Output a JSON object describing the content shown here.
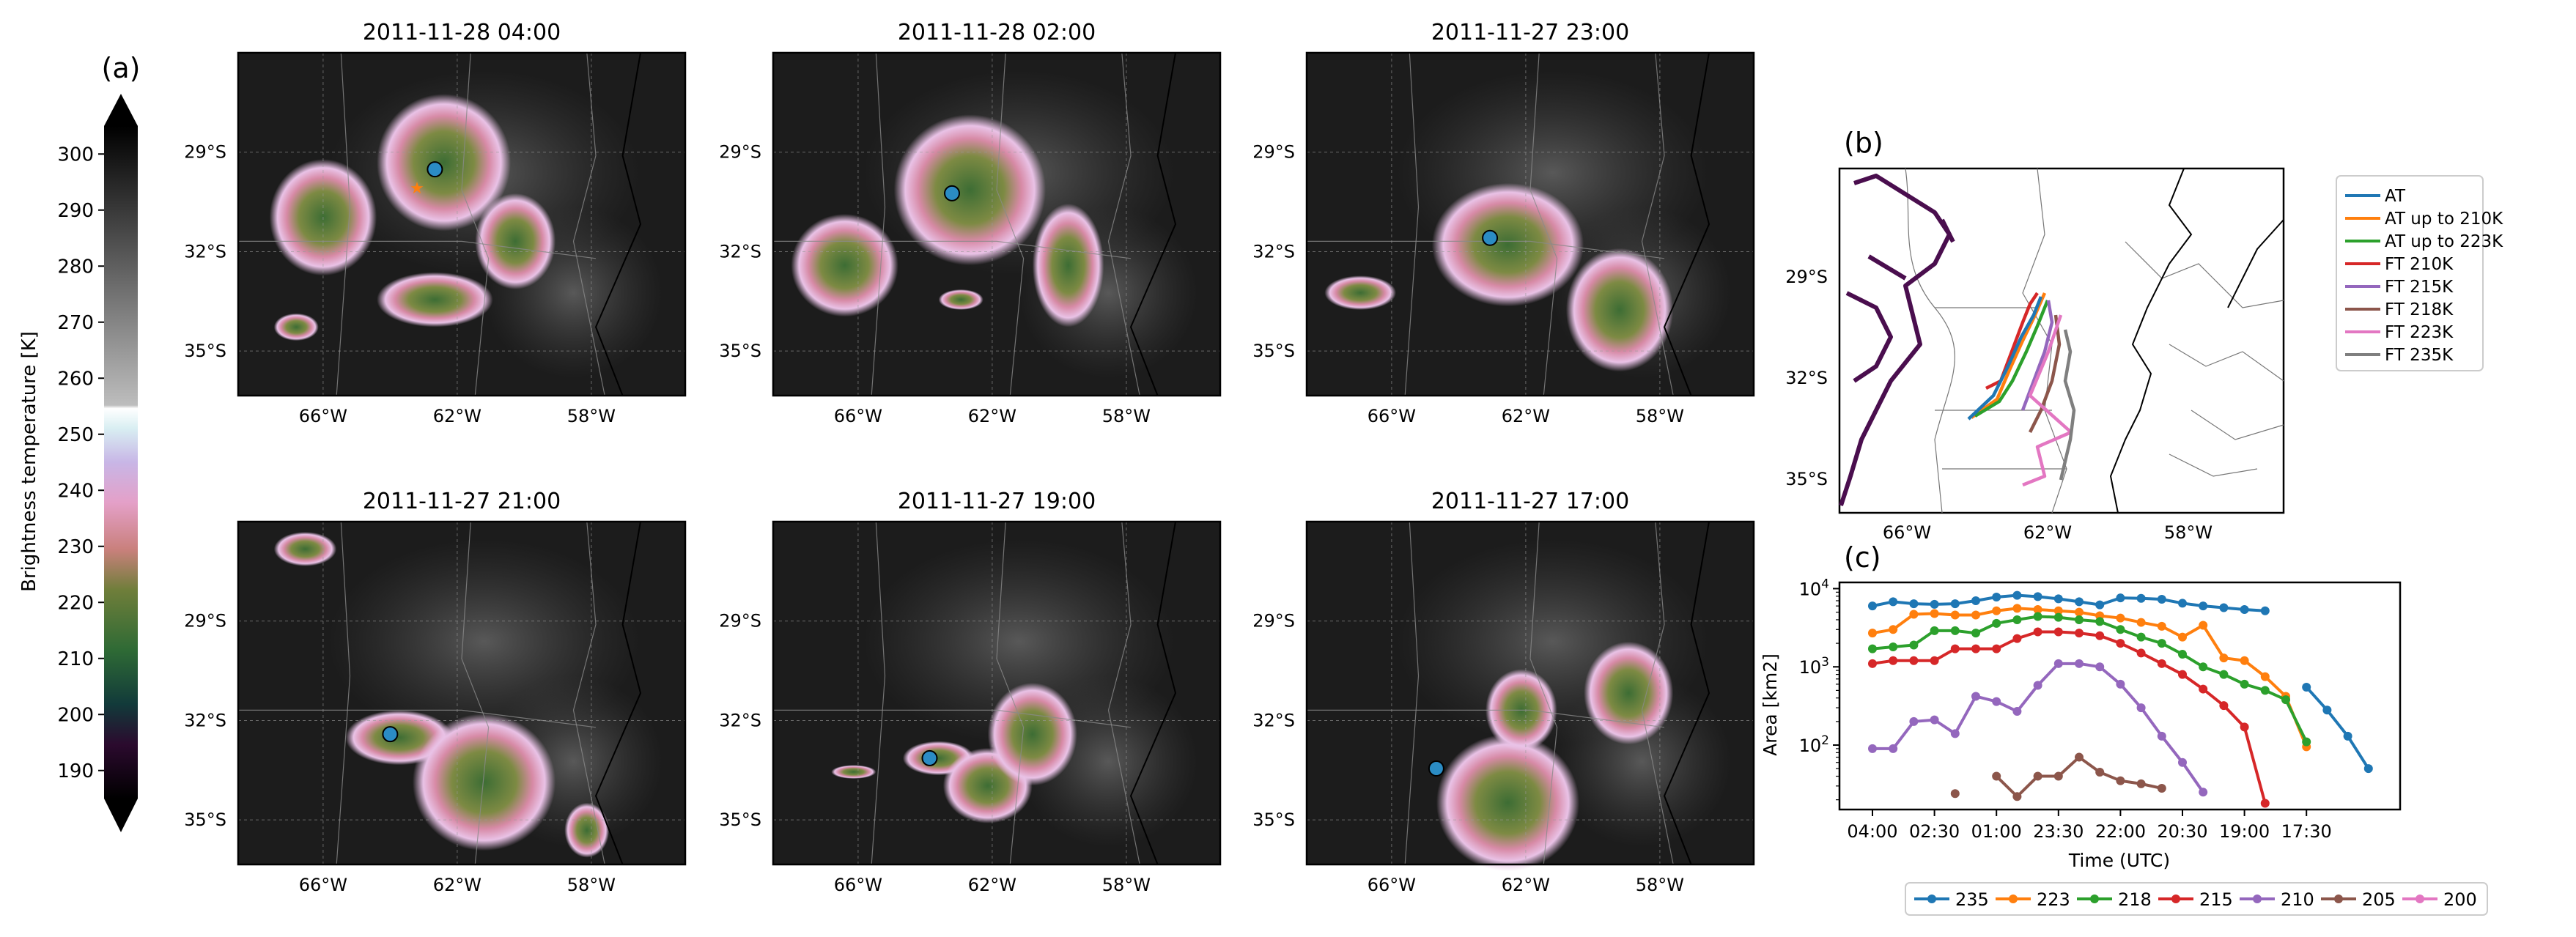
{
  "colorbar": {
    "panel_label": "(a)",
    "label": "Brightness temperature [K]",
    "ticks": [
      "190",
      "200",
      "210",
      "220",
      "230",
      "240",
      "250",
      "260",
      "270",
      "280",
      "290",
      "300"
    ],
    "range": [
      185,
      305
    ]
  },
  "maps": {
    "lat_ticks": [
      "29°S",
      "32°S",
      "35°S"
    ],
    "lon_ticks": [
      "66°W",
      "62°W",
      "58°W"
    ],
    "panels": [
      {
        "title": "2011-11-28 04:00"
      },
      {
        "title": "2011-11-28 02:00"
      },
      {
        "title": "2011-11-27 23:00"
      },
      {
        "title": "2011-11-27 21:00"
      },
      {
        "title": "2011-11-27 19:00"
      },
      {
        "title": "2011-11-27 17:00"
      }
    ]
  },
  "track_map": {
    "panel_label": "(b)",
    "lat_ticks": [
      "29°S",
      "32°S",
      "35°S"
    ],
    "lon_ticks": [
      "66°W",
      "62°W",
      "58°W"
    ],
    "legend": [
      {
        "label": "AT",
        "color": "#1f77b4"
      },
      {
        "label": "AT up to 210K",
        "color": "#ff7f0e"
      },
      {
        "label": "AT up to 223K",
        "color": "#2ca02c"
      },
      {
        "label": "FT 210K",
        "color": "#d62728"
      },
      {
        "label": "FT 215K",
        "color": "#9467bd"
      },
      {
        "label": "FT 218K",
        "color": "#8c564b"
      },
      {
        "label": "FT 223K",
        "color": "#e377c2"
      },
      {
        "label": "FT 235K",
        "color": "#7f7f7f"
      }
    ]
  },
  "chart_data": {
    "panel_label": "(c)",
    "type": "line",
    "xlabel": "Time (UTC)",
    "ylabel": "Area [km2]",
    "yscale": "log",
    "ylim": [
      15,
      12000
    ],
    "x_tick_labels": [
      "04:00",
      "02:30",
      "01:00",
      "23:30",
      "22:00",
      "20:30",
      "19:00",
      "17:30"
    ],
    "x_hours_before_start": [
      0,
      0.5,
      1,
      1.5,
      2,
      2.5,
      3,
      3.5,
      4,
      4.5,
      5,
      5.5,
      6,
      6.5,
      7,
      7.5,
      8,
      8.5,
      9,
      9.5,
      10,
      10.5,
      11,
      11.5,
      12
    ],
    "y_tick_labels": [
      "10^2",
      "10^3",
      "10^4"
    ],
    "series": [
      {
        "name": "235",
        "color": "#1f77b4",
        "values": [
          6000,
          6800,
          6400,
          6300,
          6400,
          7000,
          7800,
          8200,
          7900,
          7400,
          6800,
          6200,
          7600,
          7500,
          7300,
          6500,
          6000,
          5700,
          5400,
          5200,
          null,
          550,
          280,
          130,
          50
        ]
      },
      {
        "name": "223",
        "color": "#ff7f0e",
        "values": [
          2700,
          3000,
          4700,
          4800,
          4600,
          4600,
          5200,
          5600,
          5400,
          5200,
          5000,
          4500,
          4200,
          3700,
          3300,
          2400,
          3400,
          1300,
          1200,
          750,
          420,
          95,
          null,
          null,
          null
        ]
      },
      {
        "name": "218",
        "color": "#2ca02c",
        "values": [
          1700,
          1800,
          1900,
          2900,
          2900,
          2700,
          3600,
          4000,
          4400,
          4300,
          4000,
          3800,
          3000,
          2400,
          2000,
          1450,
          1000,
          800,
          600,
          500,
          380,
          110,
          null,
          null,
          null
        ]
      },
      {
        "name": "215",
        "color": "#d62728",
        "values": [
          1100,
          1200,
          1200,
          1200,
          1700,
          1700,
          1700,
          2300,
          2800,
          2800,
          2700,
          2500,
          2000,
          1500,
          1100,
          800,
          520,
          320,
          170,
          18,
          null,
          null,
          null,
          null,
          null
        ]
      },
      {
        "name": "210",
        "color": "#9467bd",
        "values": [
          90,
          90,
          200,
          210,
          140,
          420,
          360,
          270,
          580,
          1100,
          1100,
          1000,
          600,
          300,
          130,
          60,
          25,
          null,
          null,
          null,
          null,
          null,
          null,
          null,
          null
        ]
      },
      {
        "name": "205",
        "color": "#8c564b",
        "values": [
          null,
          null,
          null,
          null,
          24,
          null,
          40,
          22,
          40,
          40,
          70,
          45,
          35,
          32,
          28,
          null,
          null,
          null,
          null,
          null,
          null,
          null,
          null,
          null,
          null
        ]
      },
      {
        "name": "200",
        "color": "#e377c2",
        "values": [
          null,
          null,
          null,
          null,
          null,
          null,
          null,
          null,
          null,
          null,
          null,
          null,
          null,
          null,
          null,
          null,
          null,
          null,
          null,
          null,
          null,
          null,
          null,
          null,
          null
        ]
      }
    ]
  }
}
